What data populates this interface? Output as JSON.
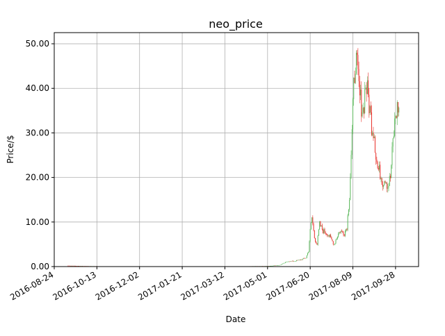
{
  "chart_data": {
    "type": "candlestick",
    "title": "neo_price",
    "xlabel": "Date",
    "ylabel": "Price/$",
    "grid": true,
    "xlim": [
      "2016-08-24",
      "2017-10-25"
    ],
    "ylim": [
      0,
      52.5
    ],
    "x_ticks": [
      "2016-08-24",
      "2016-10-13",
      "2016-12-02",
      "2017-01-21",
      "2017-03-12",
      "2017-05-01",
      "2017-06-20",
      "2017-08-09",
      "2017-09-28"
    ],
    "y_ticks": [
      "0.00",
      "10.00",
      "20.00",
      "30.00",
      "40.00",
      "50.00"
    ],
    "colors": {
      "up": "#5cb85c",
      "down": "#e8302a"
    },
    "close_series": [
      [
        "2016-09-09",
        0.2
      ],
      [
        "2016-10-01",
        0.1
      ],
      [
        "2016-11-01",
        0.05
      ],
      [
        "2016-12-01",
        0.05
      ],
      [
        "2017-01-01",
        0.05
      ],
      [
        "2017-02-01",
        0.05
      ],
      [
        "2017-03-01",
        0.05
      ],
      [
        "2017-04-01",
        0.06
      ],
      [
        "2017-05-01",
        0.12
      ],
      [
        "2017-05-15",
        0.3
      ],
      [
        "2017-05-25",
        1.2
      ],
      [
        "2017-06-01",
        1.2
      ],
      [
        "2017-06-10",
        1.6
      ],
      [
        "2017-06-15",
        2.0
      ],
      [
        "2017-06-18",
        3.5
      ],
      [
        "2017-06-20",
        8.0
      ],
      [
        "2017-06-22",
        11.0
      ],
      [
        "2017-06-25",
        6.5
      ],
      [
        "2017-06-28",
        5.0
      ],
      [
        "2017-07-01",
        9.5
      ],
      [
        "2017-07-05",
        8.0
      ],
      [
        "2017-07-10",
        7.5
      ],
      [
        "2017-07-15",
        6.0
      ],
      [
        "2017-07-18",
        5.0
      ],
      [
        "2017-07-22",
        7.0
      ],
      [
        "2017-07-25",
        8.0
      ],
      [
        "2017-07-30",
        7.5
      ],
      [
        "2017-08-02",
        9.0
      ],
      [
        "2017-08-05",
        16.0
      ],
      [
        "2017-08-08",
        30.0
      ],
      [
        "2017-08-10",
        40.0
      ],
      [
        "2017-08-12",
        47.0
      ],
      [
        "2017-08-14",
        44.0
      ],
      [
        "2017-08-17",
        38.0
      ],
      [
        "2017-08-21",
        35.0
      ],
      [
        "2017-08-24",
        41.0
      ],
      [
        "2017-08-27",
        38.0
      ],
      [
        "2017-08-31",
        32.0
      ],
      [
        "2017-09-03",
        30.0
      ],
      [
        "2017-09-05",
        25.0
      ],
      [
        "2017-09-07",
        22.0
      ],
      [
        "2017-09-10",
        21.0
      ],
      [
        "2017-09-13",
        19.0
      ],
      [
        "2017-09-16",
        20.0
      ],
      [
        "2017-09-19",
        18.0
      ],
      [
        "2017-09-22",
        20.0
      ],
      [
        "2017-09-25",
        28.0
      ],
      [
        "2017-09-28",
        34.0
      ],
      [
        "2017-10-01",
        36.0
      ],
      [
        "2017-10-03",
        34.0
      ]
    ]
  }
}
